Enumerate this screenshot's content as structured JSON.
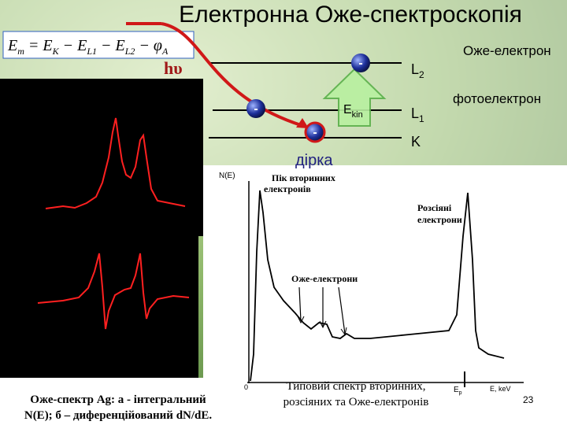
{
  "title": "Електронна Оже-спектроскопія",
  "formula": {
    "parts": [
      {
        "text": "E",
        "sub": "m"
      },
      {
        "text": " = E",
        "sub": "K"
      },
      {
        "text": " − E",
        "sub": "L1"
      },
      {
        "text": " − E",
        "sub": "L2"
      },
      {
        "text": " − φ",
        "sub": "A"
      }
    ]
  },
  "photon": "hυ",
  "levels": [
    {
      "name": "L",
      "sub": "2"
    },
    {
      "name": "L",
      "sub": "1"
    },
    {
      "name": "K"
    }
  ],
  "kinetic_energy": {
    "text": "E",
    "sub": "kin"
  },
  "electron_sign": "-",
  "labels": {
    "auger_electron": "Оже-електрон",
    "photoelectron": "фотоелектрон",
    "hole": "дірка"
  },
  "spectrum": {
    "y_axis": "N(E)",
    "origin": "0",
    "energy_tick": {
      "text": "E",
      "sub": "p"
    },
    "x_axis": "E, keV",
    "secondary_peak": "Пік вторинних електронів",
    "scattered": "Розсіяні електрони",
    "auger": "Оже-електрони",
    "caption": "Типовий спектр вторинних, розсіяних та Оже-електронів"
  },
  "left_caption": [
    "Оже-спектр Ag: а - інтегральний",
    "N(E); б – диференційований dN/dE."
  ],
  "page_number": "23"
}
